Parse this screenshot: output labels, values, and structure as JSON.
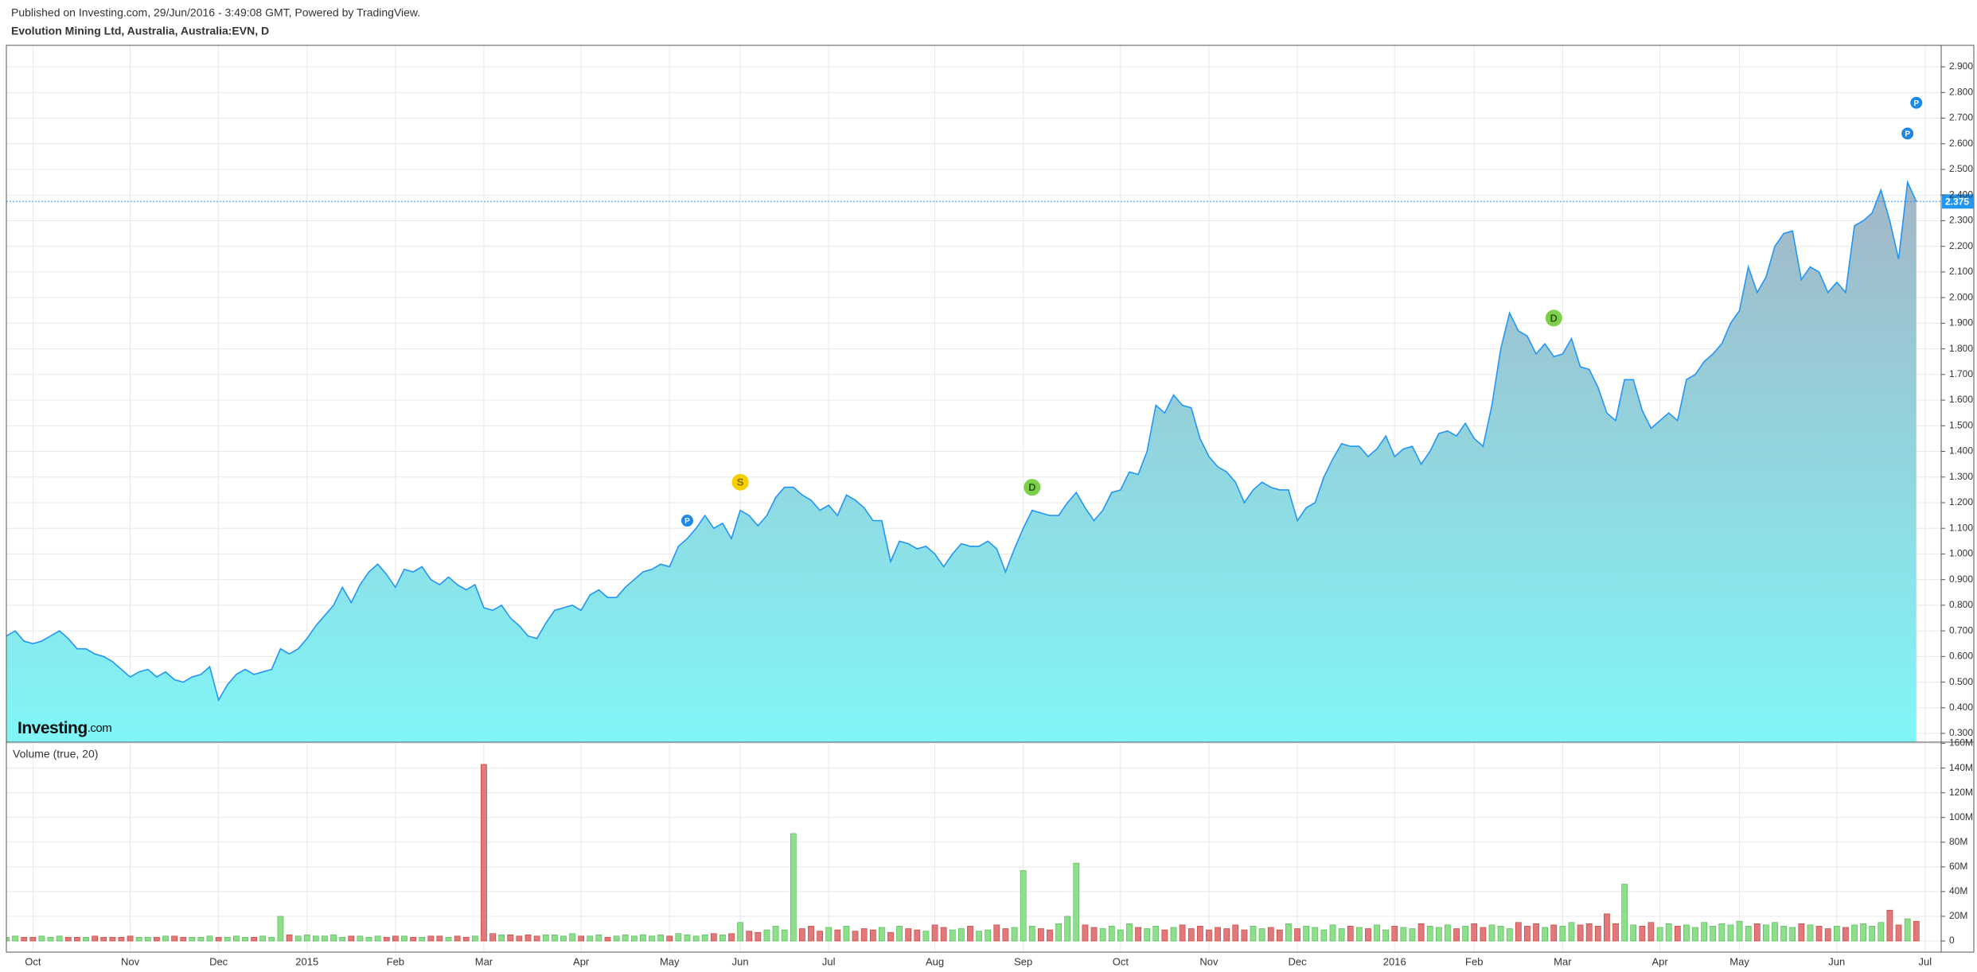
{
  "header": {
    "published": "Published on Investing.com, 29/Jun/2016 - 3:49:08 GMT, Powered by TradingView."
  },
  "watermark": {
    "brand": "Investing",
    "suffix": ".com"
  },
  "chart_data": [
    {
      "type": "area",
      "title": "Evolution Mining Ltd, Australia, Australia:EVN, D",
      "line_color": "#2196f3",
      "fill_top": "#a3b6c6",
      "fill_bottom": "#80f6f8",
      "values": [
        0.68,
        0.7,
        0.66,
        0.65,
        0.66,
        0.68,
        0.7,
        0.67,
        0.63,
        0.63,
        0.61,
        0.6,
        0.58,
        0.55,
        0.52,
        0.54,
        0.55,
        0.52,
        0.54,
        0.51,
        0.5,
        0.52,
        0.53,
        0.56,
        0.43,
        0.49,
        0.53,
        0.55,
        0.53,
        0.54,
        0.55,
        0.63,
        0.61,
        0.63,
        0.67,
        0.72,
        0.76,
        0.8,
        0.87,
        0.81,
        0.88,
        0.93,
        0.96,
        0.92,
        0.87,
        0.94,
        0.93,
        0.95,
        0.9,
        0.88,
        0.91,
        0.88,
        0.86,
        0.88,
        0.79,
        0.78,
        0.8,
        0.75,
        0.72,
        0.68,
        0.67,
        0.73,
        0.78,
        0.79,
        0.8,
        0.78,
        0.84,
        0.86,
        0.83,
        0.83,
        0.87,
        0.9,
        0.93,
        0.94,
        0.96,
        0.95,
        1.03,
        1.06,
        1.1,
        1.15,
        1.1,
        1.12,
        1.06,
        1.17,
        1.15,
        1.11,
        1.15,
        1.22,
        1.26,
        1.26,
        1.23,
        1.21,
        1.17,
        1.19,
        1.15,
        1.23,
        1.21,
        1.18,
        1.13,
        1.13,
        0.97,
        1.05,
        1.04,
        1.02,
        1.03,
        1.0,
        0.95,
        1.0,
        1.04,
        1.03,
        1.03,
        1.05,
        1.02,
        0.93,
        1.02,
        1.1,
        1.17,
        1.16,
        1.15,
        1.15,
        1.2,
        1.24,
        1.18,
        1.13,
        1.17,
        1.24,
        1.25,
        1.32,
        1.31,
        1.4,
        1.58,
        1.55,
        1.62,
        1.58,
        1.57,
        1.45,
        1.38,
        1.34,
        1.32,
        1.28,
        1.2,
        1.25,
        1.28,
        1.26,
        1.25,
        1.25,
        1.13,
        1.18,
        1.2,
        1.3,
        1.37,
        1.43,
        1.42,
        1.42,
        1.38,
        1.41,
        1.46,
        1.38,
        1.41,
        1.42,
        1.35,
        1.4,
        1.47,
        1.48,
        1.46,
        1.51,
        1.45,
        1.42,
        1.58,
        1.8,
        1.94,
        1.87,
        1.85,
        1.78,
        1.82,
        1.77,
        1.78,
        1.84,
        1.73,
        1.72,
        1.65,
        1.55,
        1.52,
        1.68,
        1.68,
        1.56,
        1.49,
        1.52,
        1.55,
        1.52,
        1.68,
        1.7,
        1.75,
        1.78,
        1.82,
        1.9,
        1.95,
        2.12,
        2.02,
        2.08,
        2.2,
        2.25,
        2.26,
        2.07,
        2.12,
        2.1,
        2.02,
        2.06,
        2.02,
        2.28,
        2.3,
        2.33,
        2.42,
        2.3,
        2.15,
        2.45,
        2.375,
        null
      ],
      "last_color": "#2196f3",
      "ylim": [
        0.266,
        2.984
      ],
      "yticks": [
        {
          "value": 0.3,
          "label": "0.300"
        },
        {
          "value": 0.4,
          "label": "0.400"
        },
        {
          "value": 0.5,
          "label": "0.500"
        },
        {
          "value": 0.6,
          "label": "0.600"
        },
        {
          "value": 0.7,
          "label": "0.700"
        },
        {
          "value": 0.8,
          "label": "0.800"
        },
        {
          "value": 0.9,
          "label": "0.900"
        },
        {
          "value": 1.0,
          "label": "1.000"
        },
        {
          "value": 1.1,
          "label": "1.100"
        },
        {
          "value": 1.2,
          "label": "1.200"
        },
        {
          "value": 1.3,
          "label": "1.300"
        },
        {
          "value": 1.4,
          "label": "1.400"
        },
        {
          "value": 1.5,
          "label": "1.500"
        },
        {
          "value": 1.6,
          "label": "1.600"
        },
        {
          "value": 1.7,
          "label": "1.700"
        },
        {
          "value": 1.8,
          "label": "1.800"
        },
        {
          "value": 1.9,
          "label": "1.900"
        },
        {
          "value": 2.0,
          "label": "2.000"
        },
        {
          "value": 2.1,
          "label": "2.100"
        },
        {
          "value": 2.2,
          "label": "2.200"
        },
        {
          "value": 2.3,
          "label": "2.300"
        },
        {
          "value": 2.4,
          "label": "2.400"
        },
        {
          "value": 2.5,
          "label": "2.500"
        },
        {
          "value": 2.6,
          "label": "2.600"
        },
        {
          "value": 2.7,
          "label": "2.700"
        },
        {
          "value": 2.8,
          "label": "2.800"
        },
        {
          "value": 2.9,
          "label": "2.900"
        }
      ],
      "grid": true,
      "events": [
        {
          "label": "P",
          "index": 77,
          "value": 1.13,
          "color": "#1e88e5"
        },
        {
          "label": "S",
          "index": 83,
          "value": 1.28,
          "color": "#f5d000"
        },
        {
          "label": "D",
          "index": 116,
          "value": 1.26,
          "color": "#7ed04b"
        },
        {
          "label": "D",
          "index": 175,
          "value": 1.92,
          "color": "#7ed04b"
        },
        {
          "label": "P",
          "index": 215,
          "value": 2.64,
          "color": "#1e88e5"
        },
        {
          "label": "P",
          "index": 216,
          "value": 2.76,
          "color": "#1e88e5"
        }
      ]
    },
    {
      "type": "bar",
      "title": "Volume (true, 20)",
      "up_color": "#8de08a",
      "down_color": "#e0787c",
      "categories": [
        null,
        null,
        null,
        "Oct",
        null,
        null,
        null,
        null,
        null,
        null,
        null,
        null,
        null,
        null,
        "Nov",
        null,
        null,
        null,
        null,
        null,
        null,
        null,
        null,
        null,
        "Dec",
        null,
        null,
        null,
        null,
        null,
        null,
        null,
        null,
        null,
        "2015",
        null,
        null,
        null,
        null,
        null,
        null,
        null,
        null,
        null,
        "Feb",
        null,
        null,
        null,
        null,
        null,
        null,
        null,
        null,
        null,
        "Mar",
        null,
        null,
        null,
        null,
        null,
        null,
        null,
        null,
        null,
        null,
        "Apr",
        null,
        null,
        null,
        null,
        null,
        null,
        null,
        null,
        null,
        "May",
        null,
        null,
        null,
        null,
        null,
        null,
        null,
        "Jun",
        null,
        null,
        null,
        null,
        null,
        null,
        null,
        null,
        null,
        "Jul",
        null,
        null,
        null,
        null,
        null,
        null,
        null,
        null,
        null,
        null,
        null,
        "Aug",
        null,
        null,
        null,
        null,
        null,
        null,
        null,
        null,
        null,
        "Sep",
        null,
        null,
        null,
        null,
        null,
        null,
        null,
        null,
        null,
        null,
        "Oct",
        null,
        null,
        null,
        null,
        null,
        null,
        null,
        null,
        null,
        "Nov",
        null,
        null,
        null,
        null,
        null,
        null,
        null,
        null,
        null,
        "Dec",
        null,
        null,
        null,
        null,
        null,
        null,
        null,
        null,
        null,
        null,
        "2016",
        null,
        null,
        null,
        null,
        null,
        null,
        null,
        null,
        "Feb",
        null,
        null,
        null,
        null,
        null,
        null,
        null,
        null,
        null,
        "Mar",
        null,
        null,
        null,
        null,
        null,
        null,
        null,
        null,
        null,
        null,
        "Apr",
        null,
        null,
        null,
        null,
        null,
        null,
        null,
        null,
        "May",
        null,
        null,
        null,
        null,
        null,
        null,
        null,
        null,
        null,
        null,
        "Jun",
        null,
        null,
        null,
        null,
        null,
        null,
        null,
        null,
        null,
        "Jul"
      ],
      "values": [
        3,
        4,
        3,
        3,
        4,
        3,
        4,
        3,
        3,
        3,
        4,
        3,
        3,
        3,
        4,
        3,
        3,
        3,
        4,
        4,
        3,
        3,
        3,
        4,
        3,
        3,
        4,
        3,
        3,
        4,
        3,
        20,
        5,
        4,
        5,
        4,
        4,
        5,
        3,
        4,
        4,
        3,
        4,
        3,
        4,
        4,
        3,
        3,
        4,
        4,
        3,
        4,
        3,
        4,
        143,
        6,
        5,
        5,
        4,
        5,
        4,
        5,
        5,
        4,
        6,
        4,
        4,
        5,
        3,
        4,
        5,
        4,
        5,
        4,
        5,
        4,
        6,
        5,
        4,
        5,
        6,
        5,
        6,
        15,
        8,
        7,
        9,
        12,
        9,
        87,
        10,
        12,
        8,
        11,
        9,
        12,
        8,
        10,
        9,
        11,
        7,
        12,
        10,
        9,
        8,
        13,
        11,
        9,
        10,
        12,
        8,
        9,
        13,
        10,
        11,
        57,
        12,
        10,
        9,
        14,
        20,
        63,
        13,
        11,
        10,
        12,
        9,
        14,
        11,
        10,
        12,
        9,
        11,
        13,
        10,
        12,
        9,
        11,
        10,
        13,
        9,
        12,
        10,
        11,
        9,
        14,
        10,
        12,
        11,
        9,
        13,
        10,
        12,
        11,
        10,
        13,
        9,
        12,
        11,
        10,
        14,
        12,
        11,
        13,
        10,
        12,
        14,
        11,
        13,
        12,
        10,
        15,
        12,
        14,
        11,
        13,
        12,
        15,
        13,
        14,
        12,
        22,
        14,
        46,
        13,
        12,
        15,
        11,
        14,
        12,
        13,
        11,
        15,
        12,
        14,
        13,
        16,
        12,
        14,
        13,
        15,
        12,
        11,
        14,
        13,
        12,
        10,
        12,
        11,
        13,
        14,
        12,
        15,
        25,
        13,
        18,
        16,
        null
      ],
      "ylim": [
        -9,
        161
      ],
      "yticks": [
        0,
        {
          "value": 20,
          "label": "20M"
        },
        {
          "value": 40,
          "label": "40M"
        },
        {
          "value": 60,
          "label": "60M"
        },
        {
          "value": 80,
          "label": "80M"
        },
        {
          "value": 100,
          "label": "100M"
        },
        {
          "value": 120,
          "label": "120M"
        },
        {
          "value": 140,
          "label": "140M"
        },
        {
          "value": 160,
          "label": "160M"
        }
      ],
      "grid": true
    }
  ]
}
